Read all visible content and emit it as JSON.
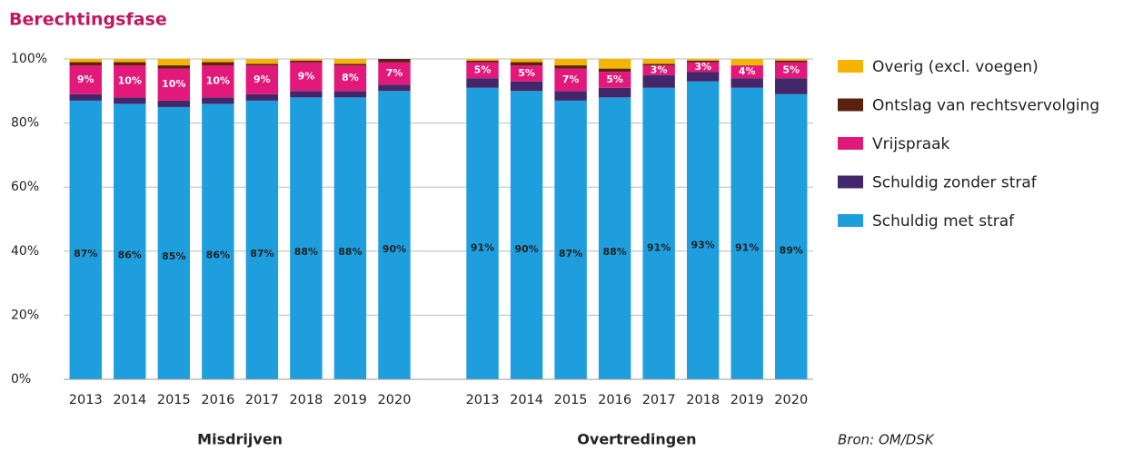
{
  "chart_data": {
    "type": "stacked-bar",
    "title": "Berechtingsfase",
    "source": "Bron: OM/DSK",
    "groups": [
      {
        "label": "Misdrijven",
        "categories": [
          "2013",
          "2014",
          "2015",
          "2016",
          "2017",
          "2018",
          "2019",
          "2020"
        ]
      },
      {
        "label": "Overtredingen",
        "categories": [
          "2013",
          "2014",
          "2015",
          "2016",
          "2017",
          "2018",
          "2019",
          "2020"
        ]
      }
    ],
    "series": [
      {
        "name": "Schuldig met straf",
        "color": "#1f9ede",
        "values": [
          87,
          86,
          85,
          86,
          87,
          88,
          88,
          90,
          91,
          90,
          87,
          88,
          91,
          93,
          91,
          89
        ],
        "value_labels": [
          "87%",
          "86%",
          "85%",
          "86%",
          "87%",
          "88%",
          "88%",
          "90%",
          "91%",
          "90%",
          "87%",
          "88%",
          "91%",
          "93%",
          "91%",
          "89%"
        ]
      },
      {
        "name": "Schuldig zonder straf",
        "color": "#44276b",
        "values": [
          2,
          2,
          2,
          2,
          2,
          2,
          2,
          2,
          3,
          3,
          3,
          3,
          4,
          3,
          3,
          5
        ]
      },
      {
        "name": "Vrijspraak",
        "color": "#e2187a",
        "values": [
          9,
          10,
          10,
          10,
          9,
          9,
          8,
          7,
          5,
          5,
          7,
          5,
          3,
          3,
          4,
          5
        ],
        "value_labels": [
          "9%",
          "10%",
          "10%",
          "10%",
          "9%",
          "9%",
          "8%",
          "7%",
          "5%",
          "5%",
          "7%",
          "5%",
          "3%",
          "3%",
          "4%",
          "5%"
        ]
      },
      {
        "name": "Ontslag van rechtsvervolging",
        "color": "#5a2010",
        "values": [
          1,
          1,
          1,
          1,
          0.5,
          0.5,
          0.5,
          1,
          0.5,
          1,
          1,
          1,
          0.5,
          0.5,
          0,
          0.5
        ]
      },
      {
        "name": "Overig (excl. voegen)",
        "color": "#f5b400",
        "values": [
          1,
          1,
          2,
          1,
          1.5,
          0.5,
          1.5,
          0,
          0.5,
          1,
          2,
          3,
          1.5,
          0.5,
          2,
          0.5
        ]
      }
    ],
    "ylim": [
      0,
      100
    ],
    "yticks": [
      {
        "value": 0,
        "label": "0%"
      },
      {
        "value": 20,
        "label": "20%"
      },
      {
        "value": 40,
        "label": "40%"
      },
      {
        "value": 60,
        "label": "60%"
      },
      {
        "value": 80,
        "label": "80%"
      },
      {
        "value": 100,
        "label": "100%"
      }
    ],
    "grid": true
  }
}
